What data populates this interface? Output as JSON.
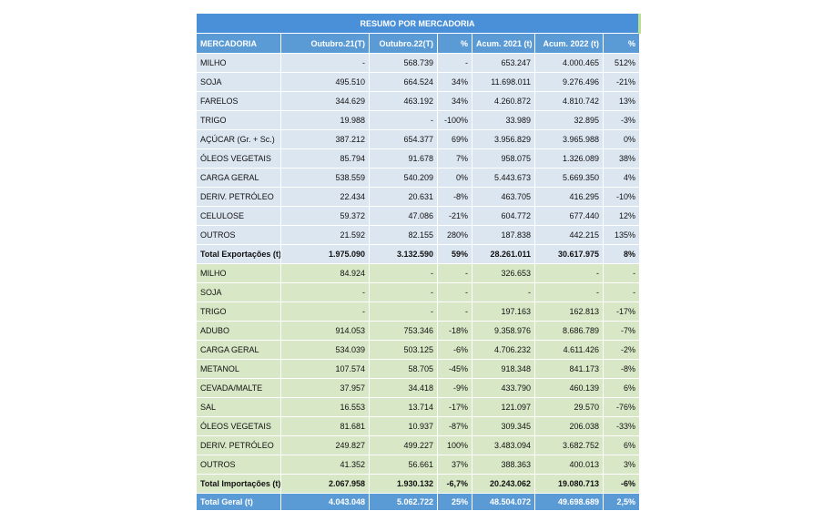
{
  "table": {
    "title": "RESUMO POR MERCADORIA",
    "header": [
      "MERCADORIA",
      "Outubro.21(T)",
      "Outubro.22(T)",
      "%",
      "Acum. 2021 (t)",
      "Acum. 2022 (t)",
      "%"
    ],
    "exports": {
      "rows": [
        [
          "MILHO",
          "-",
          "568.739",
          "-",
          "653.247",
          "4.000.465",
          "512%"
        ],
        [
          "SOJA",
          "495.510",
          "664.524",
          "34%",
          "11.698.011",
          "9.276.496",
          "-21%"
        ],
        [
          "FARELOS",
          "344.629",
          "463.192",
          "34%",
          "4.260.872",
          "4.810.742",
          "13%"
        ],
        [
          "TRIGO",
          "19.988",
          "-",
          "-100%",
          "33.989",
          "32.895",
          "-3%"
        ],
        [
          "AÇÚCAR (Gr. + Sc.)",
          "387.212",
          "654.377",
          "69%",
          "3.956.829",
          "3.965.988",
          "0%"
        ],
        [
          "ÓLEOS VEGETAIS",
          "85.794",
          "91.678",
          "7%",
          "958.075",
          "1.326.089",
          "38%"
        ],
        [
          "CARGA GERAL",
          "538.559",
          "540.209",
          "0%",
          "5.443.673",
          "5.669.350",
          "4%"
        ],
        [
          "DERIV. PETRÓLEO",
          "22.434",
          "20.631",
          "-8%",
          "463.705",
          "416.295",
          "-10%"
        ],
        [
          "CELULOSE",
          "59.372",
          "47.086",
          "-21%",
          "604.772",
          "677.440",
          "12%"
        ],
        [
          "OUTROS",
          "21.592",
          "82.155",
          "280%",
          "187.838",
          "442.215",
          "135%"
        ]
      ],
      "total": [
        "Total Exportações (t)",
        "1.975.090",
        "3.132.590",
        "59%",
        "28.261.011",
        "30.617.975",
        "8%"
      ]
    },
    "imports": {
      "rows": [
        [
          "MILHO",
          "84.924",
          "-",
          "-",
          "326.653",
          "-",
          "-"
        ],
        [
          "SOJA",
          "-",
          "-",
          "-",
          "-",
          "-",
          "-"
        ],
        [
          "TRIGO",
          "-",
          "-",
          "-",
          "197.163",
          "162.813",
          "-17%"
        ],
        [
          "ADUBO",
          "914.053",
          "753.346",
          "-18%",
          "9.358.976",
          "8.686.789",
          "-7%"
        ],
        [
          "CARGA GERAL",
          "534.039",
          "503.125",
          "-6%",
          "4.706.232",
          "4.611.426",
          "-2%"
        ],
        [
          "METANOL",
          "107.574",
          "58.705",
          "-45%",
          "918.348",
          "841.173",
          "-8%"
        ],
        [
          "CEVADA/MALTE",
          "37.957",
          "34.418",
          "-9%",
          "433.790",
          "460.139",
          "6%"
        ],
        [
          "SAL",
          "16.553",
          "13.714",
          "-17%",
          "121.097",
          "29.570",
          "-76%"
        ],
        [
          "ÓLEOS VEGETAIS",
          "81.681",
          "10.937",
          "-87%",
          "309.345",
          "206.038",
          "-33%"
        ],
        [
          "DERIV. PETRÓLEO",
          "249.827",
          "499.227",
          "100%",
          "3.483.094",
          "3.682.752",
          "6%"
        ],
        [
          "OUTROS",
          "41.352",
          "56.661",
          "37%",
          "388.363",
          "400.013",
          "3%"
        ]
      ],
      "total": [
        "Total Importações (t)",
        "2.067.958",
        "1.930.132",
        "-6,7%",
        "20.243.062",
        "19.080.713",
        "-6%"
      ]
    },
    "grand_total": [
      "Total Geral (t)",
      "4.043.048",
      "5.062.722",
      "25%",
      "48.504.072",
      "49.698.689",
      "2,5%"
    ]
  }
}
